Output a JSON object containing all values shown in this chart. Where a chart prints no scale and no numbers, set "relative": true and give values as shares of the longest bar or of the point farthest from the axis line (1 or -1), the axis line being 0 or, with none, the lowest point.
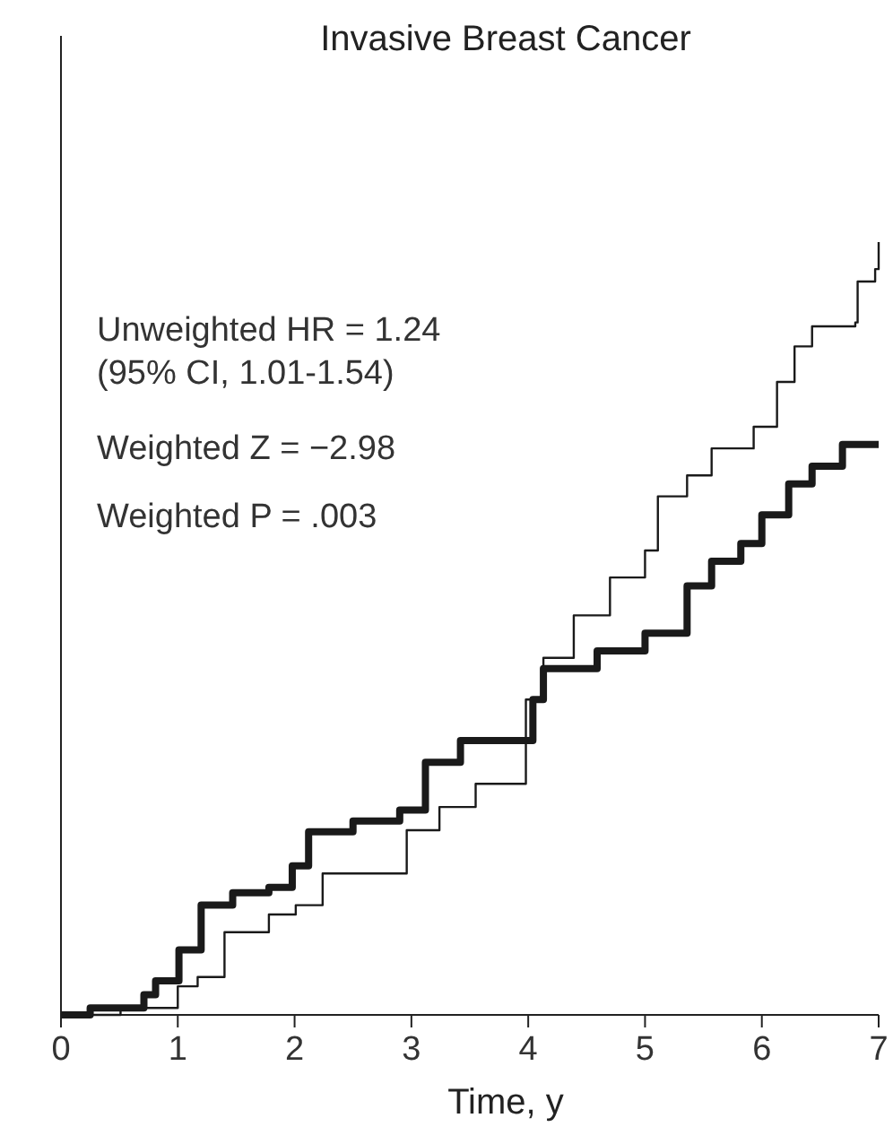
{
  "chart_data": {
    "type": "step",
    "title": "Invasive Breast Cancer",
    "xlabel": "Time, y",
    "relative": true,
    "xlim": [
      0,
      7
    ],
    "xticks": [
      0,
      1,
      2,
      3,
      4,
      5,
      6,
      7
    ],
    "tick_labels": "x",
    "annotations": [
      "Unweighted HR = 1.24",
      "(95% CI, 1.01-1.54)",
      "Weighted Z = −2.98",
      "Weighted P = .003"
    ],
    "series": [
      {
        "color": "#1a1a1a",
        "x": [
          0,
          0.51,
          1.0,
          1.17,
          1.4,
          1.78,
          2.01,
          2.24,
          2.96,
          3.24,
          3.55,
          3.98,
          4.13,
          4.39,
          4.7,
          5.0,
          5.11,
          5.36,
          5.57,
          5.93,
          6.13,
          6.28,
          6.43,
          6.8,
          6.82,
          6.97,
          7.0
        ],
        "values": [
          0,
          0.009,
          0.037,
          0.049,
          0.107,
          0.13,
          0.142,
          0.183,
          0.239,
          0.269,
          0.299,
          0.408,
          0.462,
          0.517,
          0.566,
          0.601,
          0.671,
          0.698,
          0.733,
          0.761,
          0.819,
          0.865,
          0.891,
          0.896,
          0.949,
          0.965,
          1.0
        ]
      },
      {
        "color": "#1a1a1a",
        "x": [
          0,
          0.25,
          0.71,
          0.81,
          1.01,
          1.2,
          1.47,
          1.78,
          1.98,
          2.12,
          2.5,
          2.9,
          3.12,
          3.42,
          4.04,
          4.13,
          4.59,
          5.0,
          5.36,
          5.57,
          5.82,
          6.0,
          6.23,
          6.43,
          6.69,
          7.0
        ],
        "values": [
          0,
          0.009,
          0.026,
          0.044,
          0.084,
          0.142,
          0.158,
          0.165,
          0.193,
          0.237,
          0.251,
          0.265,
          0.327,
          0.355,
          0.408,
          0.448,
          0.471,
          0.494,
          0.555,
          0.587,
          0.61,
          0.647,
          0.687,
          0.71,
          0.738,
          0.738
        ]
      }
    ]
  }
}
